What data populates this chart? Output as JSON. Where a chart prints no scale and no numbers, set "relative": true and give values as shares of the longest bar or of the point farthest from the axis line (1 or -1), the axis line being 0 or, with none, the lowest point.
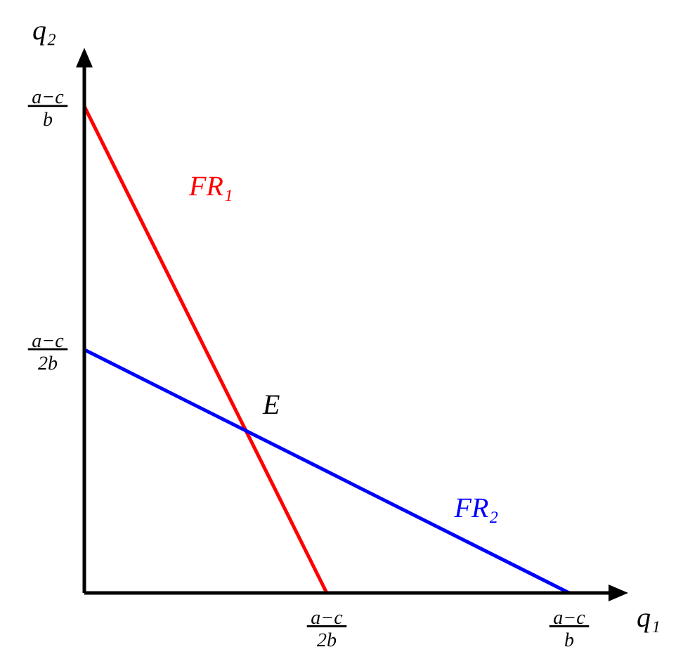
{
  "chart_data": {
    "type": "line",
    "xlabel": "q₁",
    "ylabel": "q₂",
    "relative": true,
    "categories": [
      null,
      "a−c\n2b",
      "a−c\nb"
    ],
    "series": [
      {
        "name": "FR₁",
        "color": "#ff0000",
        "values": [
          1,
          0,
          null
        ]
      },
      {
        "name": "FR₂",
        "color": "#0000ff",
        "values": [
          0.5,
          0.25,
          0
        ]
      }
    ],
    "annotations": [
      "a−c\nb",
      "a−c\n2b",
      "E"
    ],
    "grid": false,
    "legend": false,
    "marker": "none",
    "line_style": "solid"
  }
}
